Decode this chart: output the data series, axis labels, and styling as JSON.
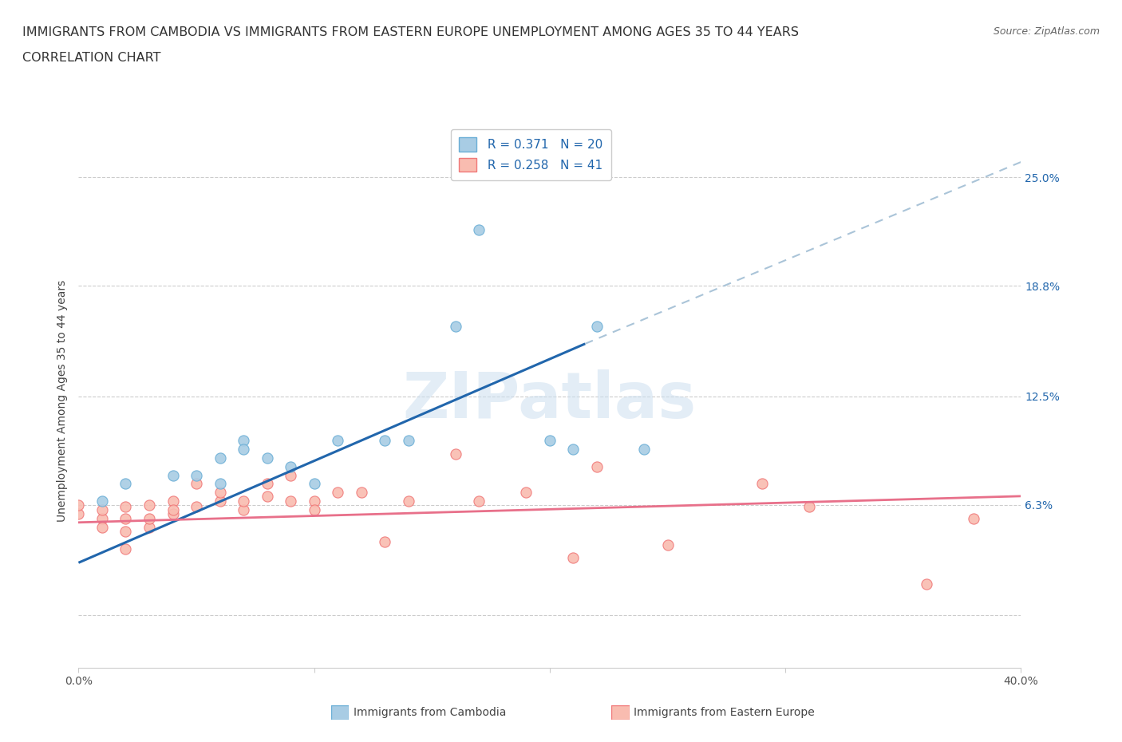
{
  "title_line1": "IMMIGRANTS FROM CAMBODIA VS IMMIGRANTS FROM EASTERN EUROPE UNEMPLOYMENT AMONG AGES 35 TO 44 YEARS",
  "title_line2": "CORRELATION CHART",
  "source": "Source: ZipAtlas.com",
  "ylabel": "Unemployment Among Ages 35 to 44 years",
  "xlim": [
    0.0,
    0.4
  ],
  "ylim": [
    -0.03,
    0.275
  ],
  "yticks": [
    0.0,
    0.063,
    0.125,
    0.188,
    0.25
  ],
  "ytick_labels": [
    "",
    "6.3%",
    "12.5%",
    "18.8%",
    "25.0%"
  ],
  "xticks": [
    0.0,
    0.1,
    0.2,
    0.3,
    0.4
  ],
  "xtick_labels": [
    "0.0%",
    "",
    "",
    "",
    "40.0%"
  ],
  "watermark": "ZIPatlas",
  "cambodia_color": "#a8cce4",
  "cambodia_edge": "#6aaed6",
  "eastern_europe_color": "#f9bcb0",
  "eastern_europe_edge": "#f07878",
  "cambodia_R": 0.371,
  "cambodia_N": 20,
  "eastern_europe_R": 0.258,
  "eastern_europe_N": 41,
  "regression_blue_color": "#2166ac",
  "regression_pink_color": "#e8708a",
  "dashed_line_color": "#aac4d8",
  "cambodia_scatter_x": [
    0.01,
    0.02,
    0.04,
    0.05,
    0.06,
    0.06,
    0.07,
    0.07,
    0.08,
    0.09,
    0.1,
    0.11,
    0.13,
    0.14,
    0.16,
    0.17,
    0.2,
    0.21,
    0.22,
    0.24
  ],
  "cambodia_scatter_y": [
    0.065,
    0.075,
    0.08,
    0.08,
    0.075,
    0.09,
    0.1,
    0.095,
    0.09,
    0.085,
    0.075,
    0.1,
    0.1,
    0.1,
    0.165,
    0.22,
    0.1,
    0.095,
    0.165,
    0.095
  ],
  "eastern_europe_scatter_x": [
    0.0,
    0.0,
    0.01,
    0.01,
    0.01,
    0.02,
    0.02,
    0.02,
    0.02,
    0.03,
    0.03,
    0.03,
    0.04,
    0.04,
    0.04,
    0.05,
    0.05,
    0.06,
    0.06,
    0.07,
    0.07,
    0.08,
    0.08,
    0.09,
    0.09,
    0.1,
    0.1,
    0.11,
    0.12,
    0.13,
    0.14,
    0.16,
    0.17,
    0.19,
    0.21,
    0.22,
    0.25,
    0.29,
    0.31,
    0.36,
    0.38
  ],
  "eastern_europe_scatter_y": [
    0.058,
    0.063,
    0.055,
    0.05,
    0.06,
    0.048,
    0.038,
    0.055,
    0.062,
    0.05,
    0.055,
    0.063,
    0.058,
    0.065,
    0.06,
    0.062,
    0.075,
    0.065,
    0.07,
    0.06,
    0.065,
    0.068,
    0.075,
    0.065,
    0.08,
    0.065,
    0.06,
    0.07,
    0.07,
    0.042,
    0.065,
    0.092,
    0.065,
    0.07,
    0.033,
    0.085,
    0.04,
    0.075,
    0.062,
    0.018,
    0.055
  ],
  "blue_line_x": [
    0.0,
    0.215
  ],
  "blue_line_y": [
    0.03,
    0.155
  ],
  "pink_line_x": [
    0.0,
    0.4
  ],
  "pink_line_y": [
    0.053,
    0.068
  ],
  "dashed_line_x": [
    0.215,
    0.42
  ],
  "dashed_line_y": [
    0.155,
    0.27
  ],
  "legend_label_cambodia": "Immigrants from Cambodia",
  "legend_label_eastern_europe": "Immigrants from Eastern Europe",
  "title_fontsize": 11.5,
  "axis_label_fontsize": 10,
  "tick_fontsize": 10,
  "legend_fontsize": 11,
  "scatter_size": 90
}
